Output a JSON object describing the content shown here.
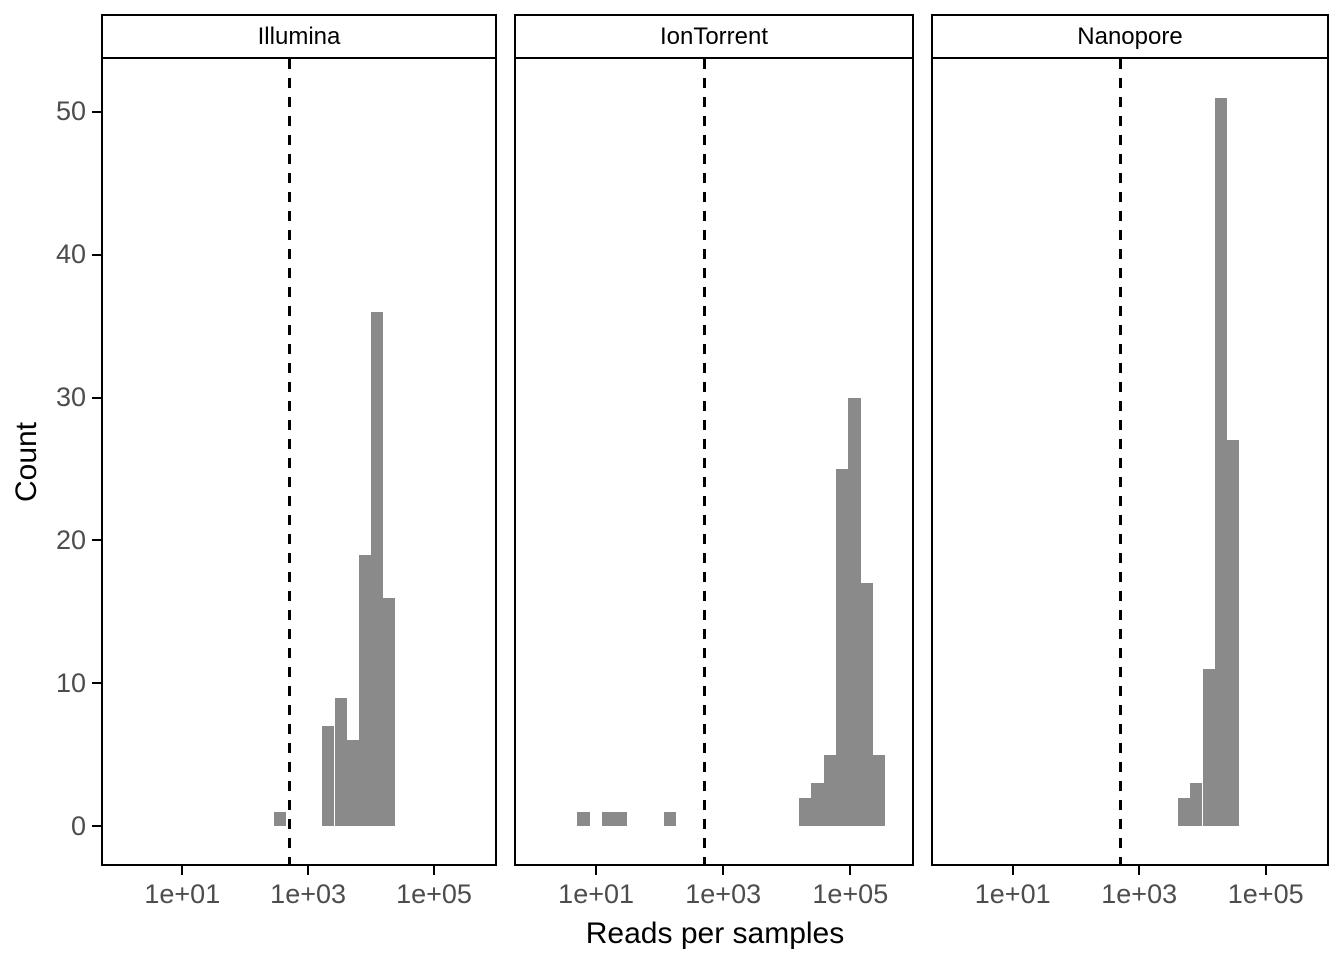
{
  "chart_data": {
    "type": "bar",
    "subtype": "faceted-histogram",
    "title": "",
    "xlabel": "Reads per samples",
    "ylabel": "Count",
    "x_scale": "log10",
    "grid": "off",
    "legend": "none",
    "x_ticks": [
      {
        "label": "1e+01",
        "log10": 1
      },
      {
        "label": "1e+03",
        "log10": 3
      },
      {
        "label": "1e+05",
        "log10": 5
      }
    ],
    "y_ticks": [
      {
        "label": "0",
        "value": 0
      },
      {
        "label": "10",
        "value": 10
      },
      {
        "label": "20",
        "value": 20
      },
      {
        "label": "30",
        "value": 30
      },
      {
        "label": "40",
        "value": 40
      },
      {
        "label": "50",
        "value": 50
      }
    ],
    "x_range_log10": [
      -0.26,
      5.97
    ],
    "y_range": [
      -2.65,
      53.7
    ],
    "bin_width_log10": 0.1938,
    "vline": {
      "value": 500,
      "log10": 2.699,
      "style": "dashed",
      "color": "#000000"
    },
    "facets": [
      {
        "name": "Illumina",
        "bars": [
          {
            "log10_left": 2.45,
            "count": 1
          },
          {
            "log10_left": 3.225,
            "count": 7
          },
          {
            "log10_left": 3.419,
            "count": 9
          },
          {
            "log10_left": 3.613,
            "count": 6
          },
          {
            "log10_left": 3.807,
            "count": 19
          },
          {
            "log10_left": 4.001,
            "count": 36
          },
          {
            "log10_left": 4.194,
            "count": 16
          }
        ]
      },
      {
        "name": "IonTorrent",
        "bars": [
          {
            "log10_left": 0.706,
            "count": 1
          },
          {
            "log10_left": 1.094,
            "count": 1
          },
          {
            "log10_left": 1.288,
            "count": 1
          },
          {
            "log10_left": 2.063,
            "count": 1
          },
          {
            "log10_left": 4.194,
            "count": 2
          },
          {
            "log10_left": 4.388,
            "count": 3
          },
          {
            "log10_left": 4.582,
            "count": 5
          },
          {
            "log10_left": 4.776,
            "count": 25
          },
          {
            "log10_left": 4.97,
            "count": 30
          },
          {
            "log10_left": 5.164,
            "count": 17
          },
          {
            "log10_left": 5.358,
            "count": 5
          }
        ]
      },
      {
        "name": "Nanopore",
        "bars": [
          {
            "log10_left": 3.613,
            "count": 2
          },
          {
            "log10_left": 3.807,
            "count": 3
          },
          {
            "log10_left": 4.001,
            "count": 11
          },
          {
            "log10_left": 4.194,
            "count": 51
          },
          {
            "log10_left": 4.388,
            "count": 27
          }
        ]
      }
    ],
    "colors": {
      "bar_fill": "#8a8a8a",
      "axis_text": "#4d4d4d",
      "axis_title": "#000000",
      "panel_border": "#000000",
      "strip_background": "#ffffff",
      "background": "#ffffff"
    }
  }
}
